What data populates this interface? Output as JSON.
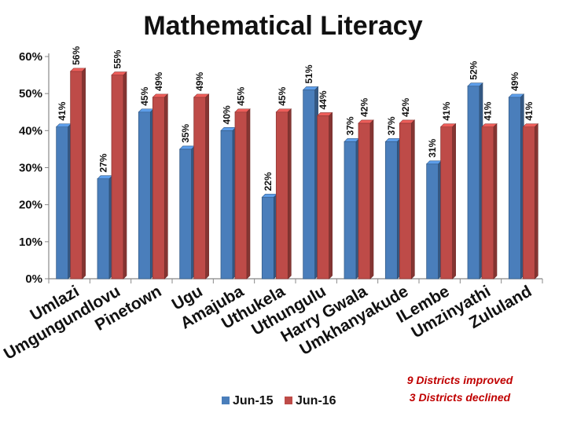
{
  "chart_data": {
    "type": "bar",
    "title": "Mathematical Literacy",
    "categories": [
      "Umlazi",
      "Umgungundlovu",
      "Pinetown",
      "Ugu",
      "Amajuba",
      "Uthukela",
      "Uthungulu",
      "Harry Gwala",
      "Umkhanyakude",
      "ILembe",
      "Umzinyathi",
      "Zululand"
    ],
    "series": [
      {
        "name": "Jun-15",
        "color": "#4a7ebb",
        "values": [
          41,
          27,
          45,
          35,
          40,
          22,
          51,
          37,
          37,
          31,
          52,
          49
        ],
        "labels": [
          "41%",
          "27%",
          "45%",
          "35%",
          "40%",
          "22%",
          "51%",
          "37%",
          "37%",
          "31%",
          "52%",
          "49%"
        ]
      },
      {
        "name": "Jun-16",
        "color": "#be4b48",
        "values": [
          56,
          55,
          49,
          49,
          45,
          45,
          44,
          42,
          42,
          41,
          41,
          41
        ],
        "labels": [
          "56%",
          "55%",
          "49%",
          "49%",
          "45%",
          "45%",
          "44%",
          "42%",
          "42%",
          "41%",
          "41%",
          "41%"
        ]
      }
    ],
    "ylim": [
      0,
      60
    ],
    "yticks": [
      0,
      10,
      20,
      30,
      40,
      50,
      60
    ],
    "ytick_labels": [
      "0%",
      "10%",
      "20%",
      "30%",
      "40%",
      "50%",
      "60%"
    ],
    "grid": false,
    "legend_position": "bottom-center"
  },
  "annotation": {
    "line1": "9 Districts improved",
    "line2": "3 Districts declined"
  }
}
